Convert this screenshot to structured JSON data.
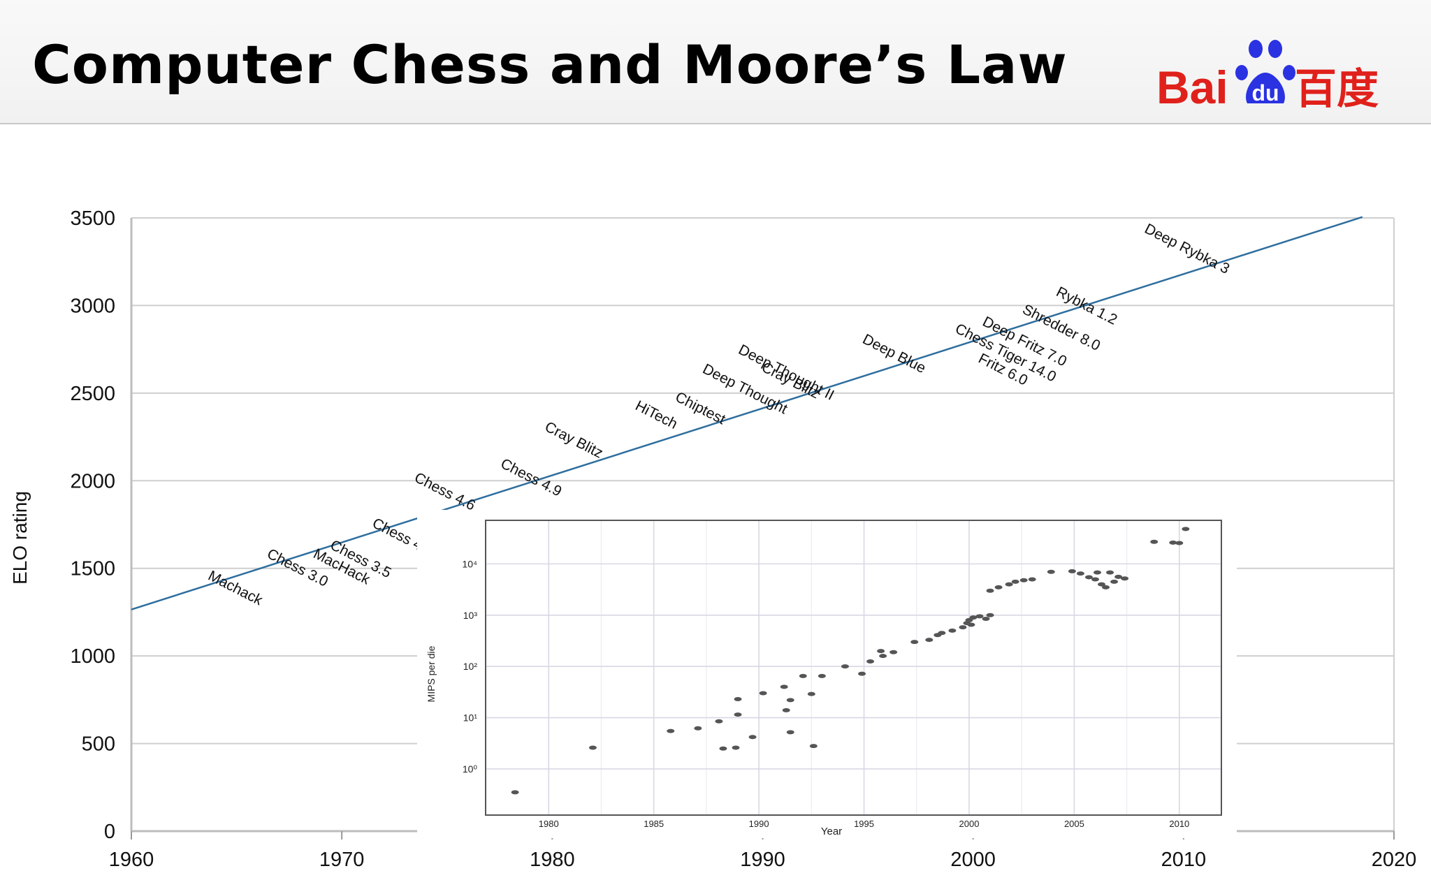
{
  "slide": {
    "title": "Computer Chess and Moore’s Law"
  },
  "logo": {
    "text_latin": "Bai",
    "text_paw": "du",
    "text_cjk": "百度",
    "color": "#e0211b",
    "paw_color": "#2a32e1"
  },
  "chart_data": [
    {
      "type": "line",
      "xlabel": "",
      "ylabel": "ELO rating",
      "xlim": [
        1960,
        2020
      ],
      "ylim": [
        0,
        3500
      ],
      "x_ticks": [
        "1960",
        "1970",
        "1980",
        "1990",
        "2000",
        "2010",
        "2020"
      ],
      "y_ticks": [
        "0",
        "500",
        "1000",
        "1500",
        "2000",
        "2500",
        "3000",
        "3500"
      ],
      "grid": "horizontal",
      "line_color": "#2e6e9e",
      "trend_line": {
        "x": [
          1960,
          2018.5
        ],
        "y": [
          1265,
          3505
        ]
      },
      "labels": [
        {
          "text": "Machack",
          "x": 1963.6,
          "y": 1440
        },
        {
          "text": "Chess 3.0",
          "x": 1966.4,
          "y": 1565
        },
        {
          "text": "MacHack",
          "x": 1968.6,
          "y": 1565
        },
        {
          "text": "Chess 3.5",
          "x": 1969.4,
          "y": 1615
        },
        {
          "text": "Chess 4",
          "x": 1971.4,
          "y": 1740
        },
        {
          "text": "Chess 4.6",
          "x": 1973.4,
          "y": 2000
        },
        {
          "text": "Chess 4.9",
          "x": 1977.5,
          "y": 2080
        },
        {
          "text": "Cray Blitz",
          "x": 1979.6,
          "y": 2290
        },
        {
          "text": "HiTech",
          "x": 1983.9,
          "y": 2410
        },
        {
          "text": "Chiptest",
          "x": 1985.8,
          "y": 2460
        },
        {
          "text": "Deep Thought",
          "x": 1987.1,
          "y": 2620
        },
        {
          "text": "Deep Thought II",
          "x": 1988.8,
          "y": 2730
        },
        {
          "text": "Cray Blitz",
          "x": 1989.9,
          "y": 2630
        },
        {
          "text": "Deep Blue",
          "x": 1994.7,
          "y": 2790
        },
        {
          "text": "Chess Tiger 14.0",
          "x": 1999.1,
          "y": 2850
        },
        {
          "text": "Deep Fritz 7.0",
          "x": 2000.4,
          "y": 2890
        },
        {
          "text": "Fritz 6.0",
          "x": 2000.2,
          "y": 2680
        },
        {
          "text": "Shredder 8.0",
          "x": 2002.3,
          "y": 2960
        },
        {
          "text": "Rybka 1.2",
          "x": 2003.9,
          "y": 3060
        },
        {
          "text": "Deep Rybka 3",
          "x": 2008.1,
          "y": 3420
        }
      ]
    },
    {
      "type": "scatter",
      "xlabel": "Year",
      "ylabel": "MIPS per die",
      "xlim": [
        1977,
        2012
      ],
      "y_log": true,
      "ylim_log10": [
        -0.9,
        4.85
      ],
      "x_ticks": [
        "1980",
        "1985",
        "1990",
        "1995",
        "2000",
        "2005",
        "2010"
      ],
      "y_ticks": [
        "10⁰",
        "10¹",
        "10²",
        "10³",
        "10⁴"
      ],
      "grid": "both",
      "points": [
        [
          1978.4,
          0.35
        ],
        [
          1982.1,
          2.6
        ],
        [
          1985.8,
          5.5
        ],
        [
          1987.1,
          6.2
        ],
        [
          1988.1,
          8.5
        ],
        [
          1988.3,
          2.5
        ],
        [
          1988.9,
          2.6
        ],
        [
          1989.0,
          23
        ],
        [
          1989.0,
          11.5
        ],
        [
          1989.7,
          4.2
        ],
        [
          1990.2,
          30
        ],
        [
          1991.3,
          14
        ],
        [
          1991.2,
          40
        ],
        [
          1991.5,
          5.2
        ],
        [
          1991.5,
          22
        ],
        [
          1992.1,
          65
        ],
        [
          1992.5,
          29
        ],
        [
          1992.6,
          2.8
        ],
        [
          1993.0,
          65
        ],
        [
          1994.1,
          100
        ],
        [
          1994.9,
          72
        ],
        [
          1995.3,
          125
        ],
        [
          1995.8,
          200
        ],
        [
          1995.9,
          160
        ],
        [
          1996.4,
          190
        ],
        [
          1997.4,
          300
        ],
        [
          1998.1,
          330
        ],
        [
          1998.5,
          410
        ],
        [
          1998.7,
          450
        ],
        [
          1999.2,
          500
        ],
        [
          1999.7,
          580
        ],
        [
          1999.9,
          700
        ],
        [
          2000.0,
          800
        ],
        [
          2000.1,
          650
        ],
        [
          2000.2,
          900
        ],
        [
          2000.5,
          950
        ],
        [
          2001.0,
          1000
        ],
        [
          2000.8,
          850
        ],
        [
          2001.0,
          3000
        ],
        [
          2001.4,
          3500
        ],
        [
          2001.9,
          4000
        ],
        [
          2002.2,
          4500
        ],
        [
          2002.6,
          4800
        ],
        [
          2003.0,
          5000
        ],
        [
          2003.9,
          7000
        ],
        [
          2004.9,
          7200
        ],
        [
          2005.3,
          6500
        ],
        [
          2005.7,
          5500
        ],
        [
          2006.0,
          5000
        ],
        [
          2006.1,
          6800
        ],
        [
          2006.3,
          4000
        ],
        [
          2006.5,
          3500
        ],
        [
          2006.7,
          6800
        ],
        [
          2006.9,
          4500
        ],
        [
          2007.1,
          5600
        ],
        [
          2007.4,
          5200
        ],
        [
          2008.8,
          27000
        ],
        [
          2009.7,
          26000
        ],
        [
          2010.0,
          25500
        ],
        [
          2010.3,
          48000
        ]
      ]
    }
  ]
}
